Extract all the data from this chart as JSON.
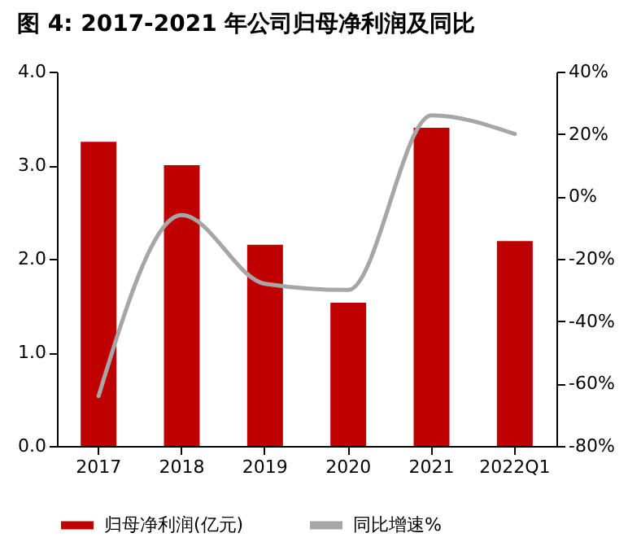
{
  "chart_data": {
    "type": "bar",
    "title": "图 4: 2017-2021 年公司归母净利润及同比",
    "categories": [
      "2017",
      "2018",
      "2019",
      "2020",
      "2021",
      "2022Q1"
    ],
    "series": [
      {
        "name": "归母净利润(亿元)",
        "color": "#c00000",
        "values": [
          3.25,
          3.0,
          2.15,
          1.53,
          3.4,
          2.19
        ]
      },
      {
        "name": "同比增速%",
        "type": "line",
        "axis": "y2",
        "color": "#a6a6a6",
        "values": [
          -64,
          -6,
          -28,
          -30,
          26,
          20
        ]
      }
    ],
    "ylim": [
      0,
      4
    ],
    "yticks": [
      {
        "value": 0,
        "label": "0.0"
      },
      {
        "value": 1,
        "label": "1.0"
      },
      {
        "value": 2,
        "label": "2.0"
      },
      {
        "value": 3,
        "label": "3.0"
      },
      {
        "value": 4,
        "label": "4.0"
      }
    ],
    "y2lim": [
      -80,
      40
    ],
    "y2ticks": [
      {
        "value": -80,
        "label": "-80%"
      },
      {
        "value": -60,
        "label": "-60%"
      },
      {
        "value": -40,
        "label": "-40%"
      },
      {
        "value": -20,
        "label": "-20%"
      },
      {
        "value": 0,
        "label": "0%"
      },
      {
        "value": 20,
        "label": "20%"
      },
      {
        "value": 40,
        "label": "40%"
      }
    ],
    "grid": false,
    "legend": "bottom",
    "marker": "none",
    "line_style": "solid"
  }
}
